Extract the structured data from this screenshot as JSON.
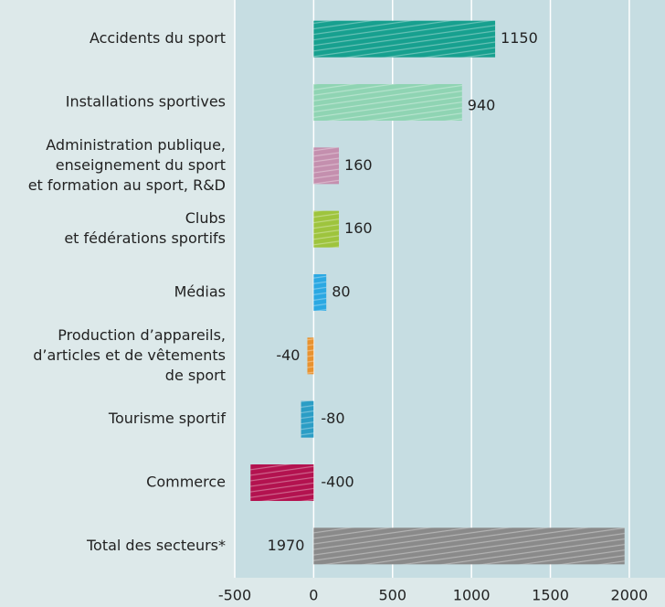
{
  "chart_data": {
    "type": "barh",
    "categories": [
      [
        "Accidents du sport"
      ],
      [
        "Installations sportives"
      ],
      [
        "Administration publique,",
        "enseignement du sport",
        "et formation au sport, R&D"
      ],
      [
        "Clubs",
        "et fédérations sportifs"
      ],
      [
        "Médias"
      ],
      [
        "Production d’appareils,",
        "d’articles et de vêtements",
        "de sport"
      ],
      [
        "Tourisme sportif"
      ],
      [
        "Commerce"
      ],
      [
        "Total des secteurs*"
      ]
    ],
    "values": [
      1150,
      940,
      160,
      160,
      80,
      -40,
      -80,
      -400,
      1970
    ],
    "colors": [
      "#17a08f",
      "#8fd4b3",
      "#c48fae",
      "#9ec43d",
      "#2aa8e2",
      "#e8922f",
      "#2b9dc5",
      "#b3124f",
      "#8a8a8a"
    ],
    "xlim": [
      -500,
      2180
    ],
    "xticks": [
      -500,
      0,
      500,
      1000,
      1500,
      2000
    ],
    "grid": true
  }
}
